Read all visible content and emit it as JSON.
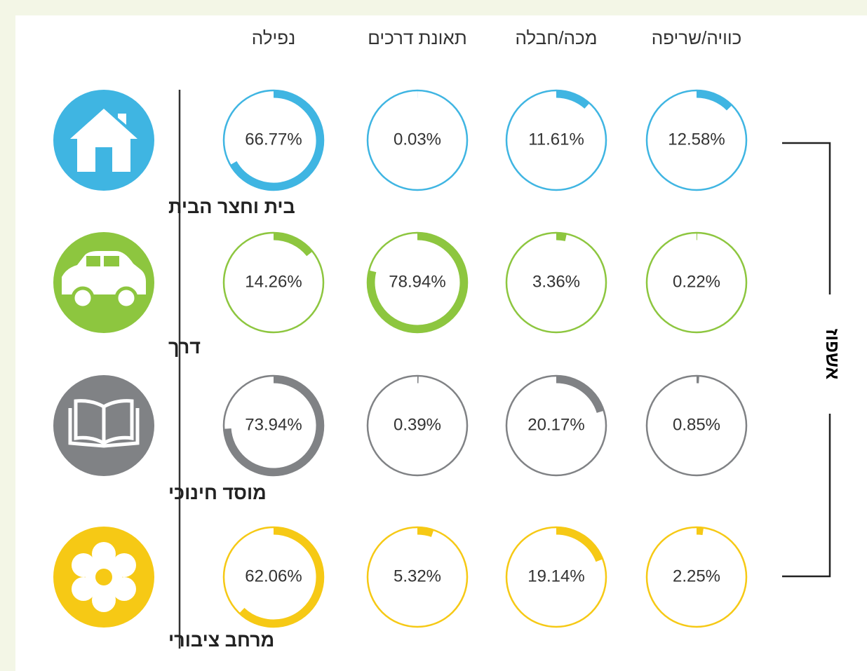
{
  "chart_data": {
    "type": "ring",
    "categories": [
      "נפילה",
      "תאונת דרכים",
      "מכה/חבלה",
      "כוויה/שריפה"
    ],
    "axis_label": "אשפוז",
    "series": [
      {
        "name": "בית וחצר הבית",
        "color": "#3fb5e2",
        "values": [
          66.77,
          0.03,
          11.61,
          12.58
        ],
        "value_labels": [
          "66.77%",
          "0.03%",
          "11.61%",
          "12.58%"
        ]
      },
      {
        "name": "דרך",
        "color": "#8dc63f",
        "values": [
          14.26,
          78.94,
          3.36,
          0.22
        ],
        "value_labels": [
          "14.26%",
          "78.94%",
          "3.36%",
          "0.22%"
        ]
      },
      {
        "name": "מוסד חינוכי",
        "color": "#808285",
        "values": [
          73.94,
          0.39,
          20.17,
          0.85
        ],
        "value_labels": [
          "73.94%",
          "0.39%",
          "20.17%",
          "0.85%"
        ]
      },
      {
        "name": "מרחב ציבורי",
        "color": "#f6c915",
        "values": [
          62.06,
          5.32,
          19.14,
          2.25
        ],
        "value_labels": [
          "62.06%",
          "5.32%",
          "19.14%",
          "2.25%"
        ]
      }
    ]
  }
}
